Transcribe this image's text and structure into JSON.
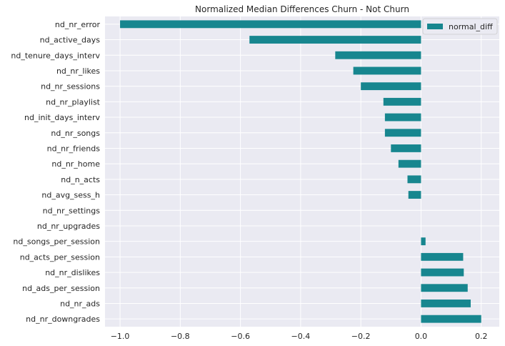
{
  "chart_data": {
    "type": "bar",
    "orientation": "horizontal",
    "title": "Normalized Median Differences Churn - Not Churn",
    "xlabel": "",
    "ylabel": "",
    "xlim": [
      -1.05,
      0.26
    ],
    "x_ticks": [
      -1.0,
      -0.8,
      -0.6,
      -0.4,
      -0.2,
      0.0,
      0.2
    ],
    "x_tick_labels": [
      "−1.0",
      "−0.8",
      "−0.6",
      "−0.4",
      "−0.2",
      "0.0",
      "0.2"
    ],
    "grid": true,
    "legend_position": "top-right",
    "categories": [
      "nd_nr_error",
      "nd_active_days",
      "nd_tenure_days_interv",
      "nd_nr_likes",
      "nd_nr_sessions",
      "nd_nr_playlist",
      "nd_init_days_interv",
      "nd_nr_songs",
      "nd_nr_friends",
      "nd_nr_home",
      "nd_n_acts",
      "nd_avg_sess_h",
      "nd_nr_settings",
      "nd_nr_upgrades",
      "nd_songs_per_session",
      "nd_acts_per_session",
      "nd_nr_dislikes",
      "nd_ads_per_session",
      "nd_nr_ads",
      "nd_nr_downgrades"
    ],
    "series": [
      {
        "name": "normal_diff",
        "color": "#17868f",
        "values": [
          -1.0,
          -0.57,
          -0.285,
          -0.225,
          -0.2,
          -0.125,
          -0.12,
          -0.12,
          -0.1,
          -0.075,
          -0.045,
          -0.042,
          0.0,
          0.0,
          0.015,
          0.14,
          0.142,
          0.155,
          0.165,
          0.2
        ]
      }
    ],
    "colors": {
      "plot_background": "#eaeaf2",
      "grid": "#ffffff",
      "bar": "#17868f"
    }
  }
}
